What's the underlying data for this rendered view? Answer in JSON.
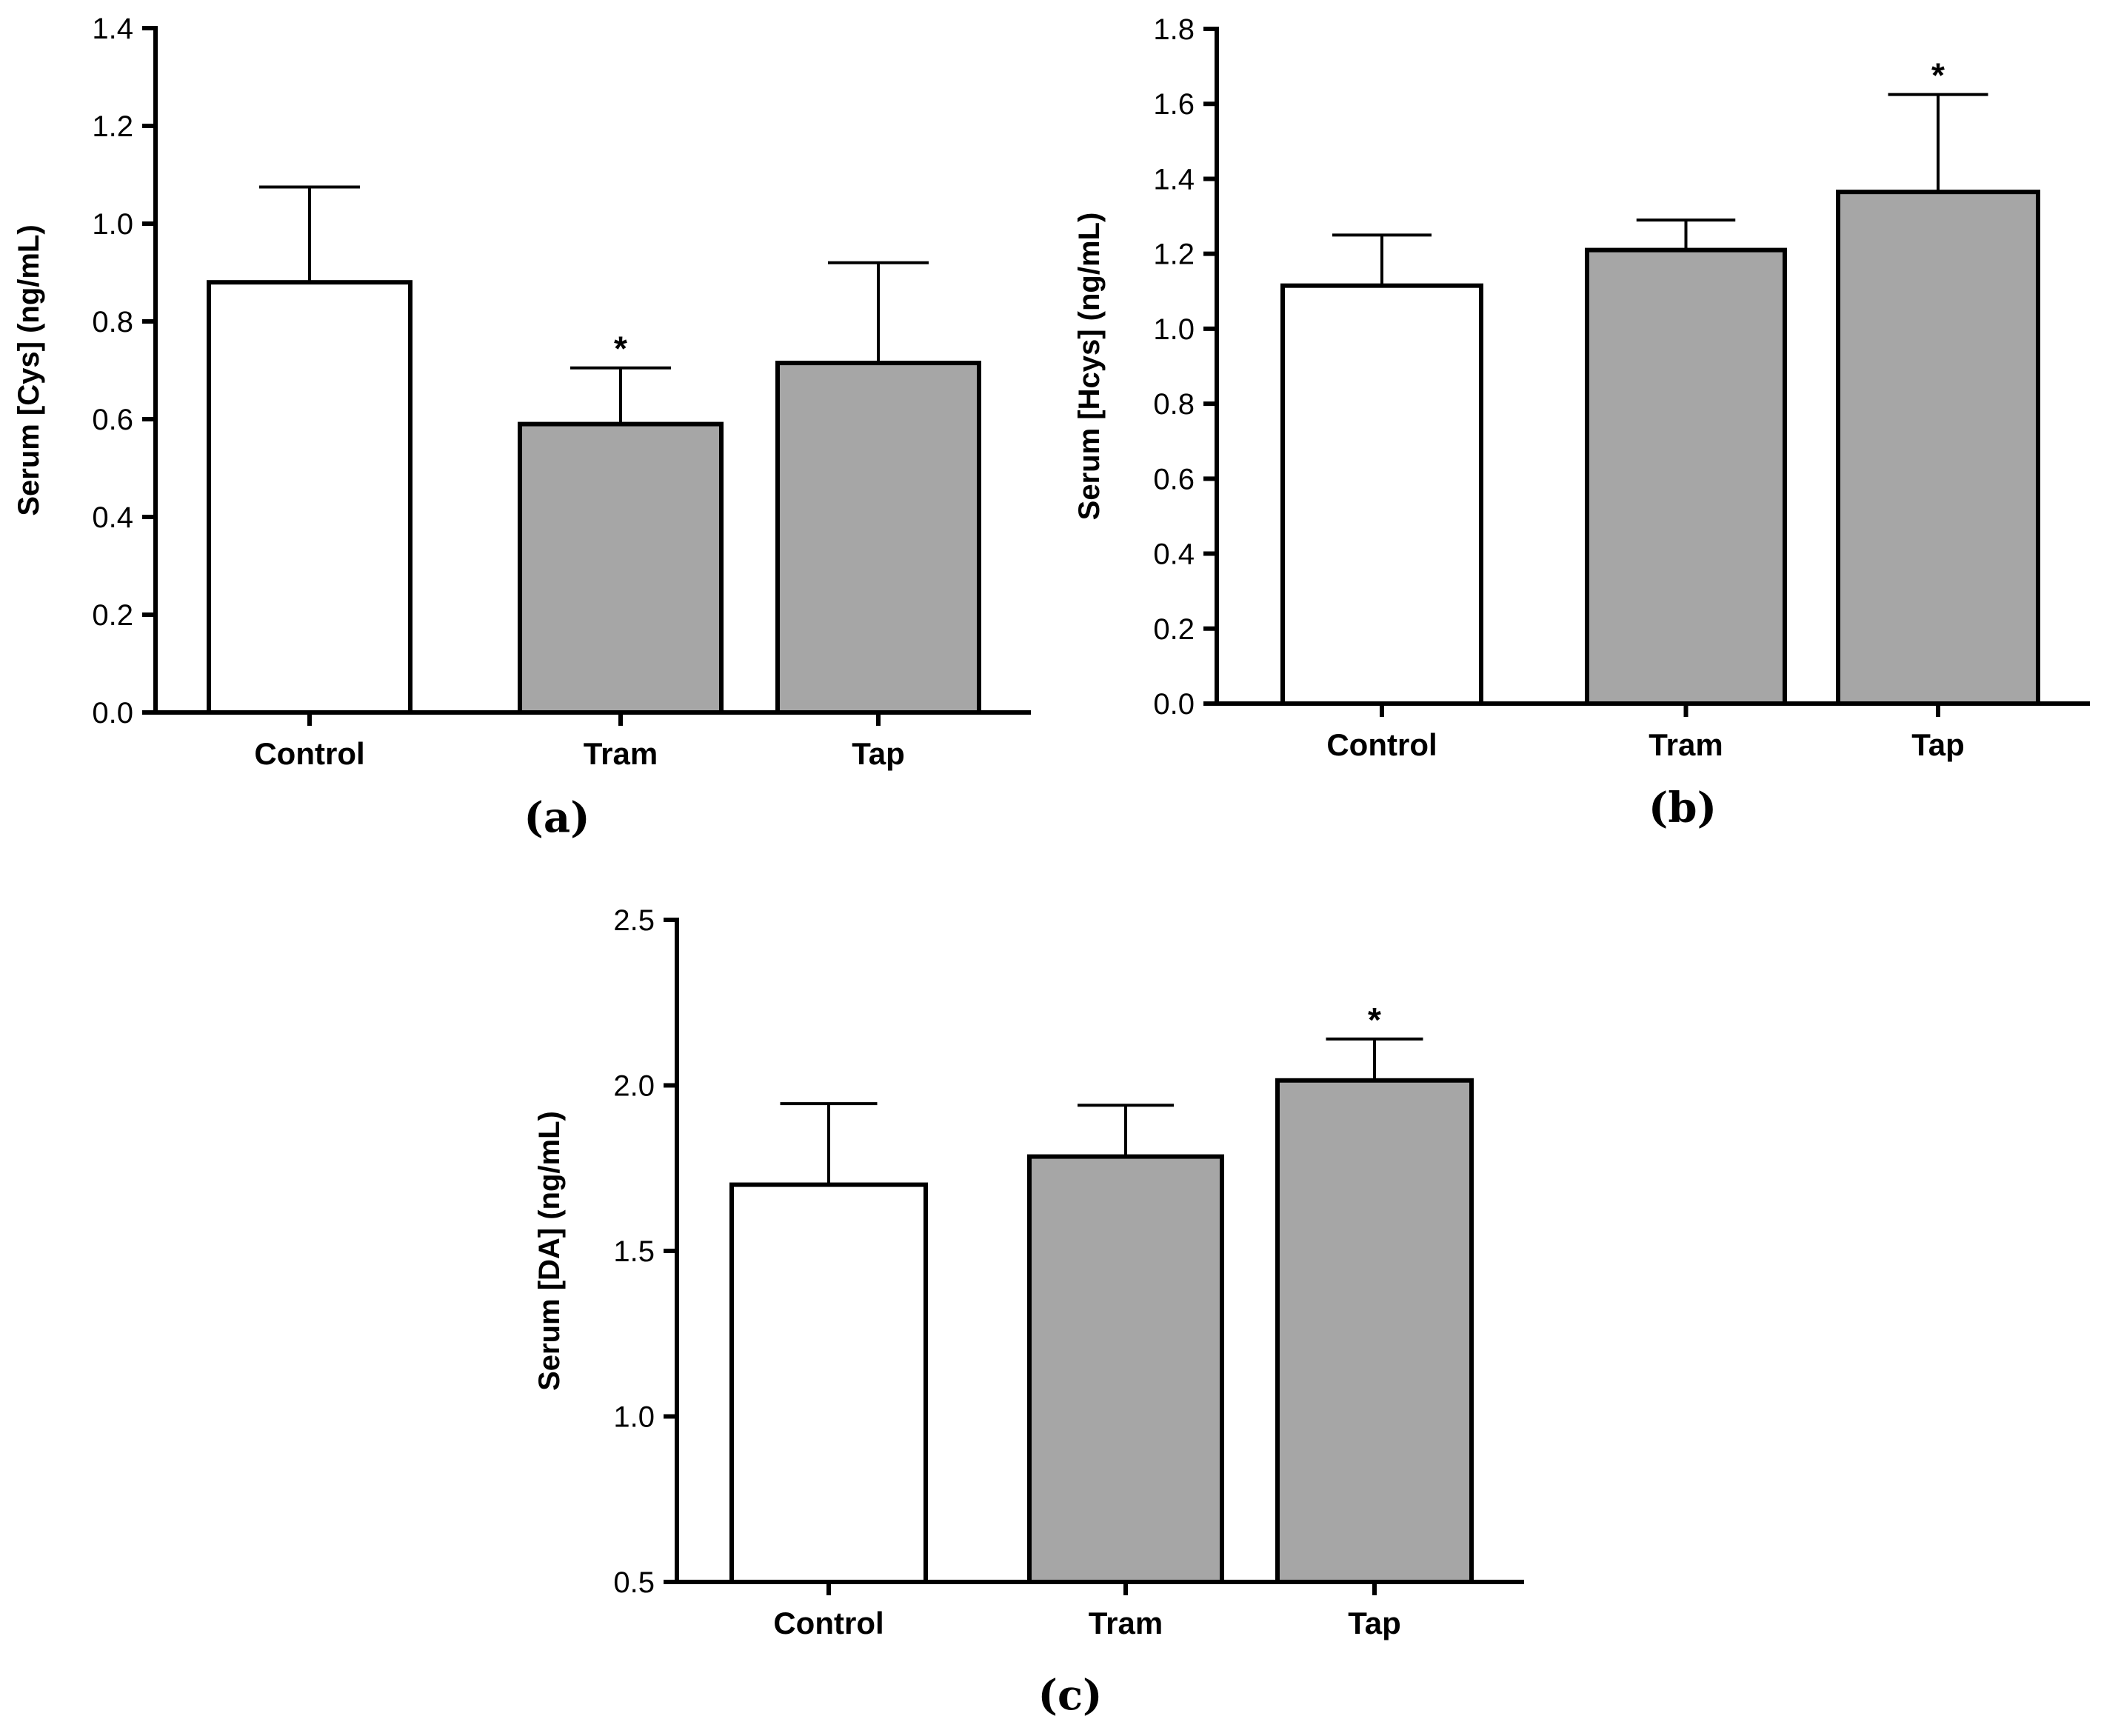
{
  "colors": {
    "control_fill": "#ffffff",
    "treatment_fill": "#a6a6a6",
    "stroke": "#000000"
  },
  "chart_data": [
    {
      "type": "bar",
      "panel": "(a)",
      "categories": [
        "Control",
        "Tram",
        "Tap"
      ],
      "values": [
        0.88,
        0.59,
        0.715
      ],
      "errors": [
        0.195,
        0.115,
        0.205
      ],
      "significance": [
        "",
        "*",
        ""
      ],
      "ylabel": "Serum [Cys] (ng/mL)",
      "xlabel": "",
      "ylim": [
        0,
        1.4
      ],
      "yticks": [
        0.0,
        0.2,
        0.4,
        0.6,
        0.8,
        1.0,
        1.2,
        1.4
      ],
      "ytick_labels": [
        "0.0",
        "0.2",
        "0.4",
        "0.6",
        "0.8",
        "1.0",
        "1.2",
        "1.4"
      ],
      "grid": false
    },
    {
      "type": "bar",
      "panel": "(b)",
      "categories": [
        "Control",
        "Tram",
        "Tap"
      ],
      "values": [
        1.115,
        1.21,
        1.365
      ],
      "errors": [
        0.135,
        0.08,
        0.26
      ],
      "significance": [
        "",
        "",
        "*"
      ],
      "ylabel": "Serum [Hcys] (ng/mL)",
      "xlabel": "",
      "ylim": [
        0,
        1.8
      ],
      "yticks": [
        0.0,
        0.2,
        0.4,
        0.6,
        0.8,
        1.0,
        1.2,
        1.4,
        1.6,
        1.8
      ],
      "ytick_labels": [
        "0.0",
        "0.2",
        "0.4",
        "0.6",
        "0.8",
        "1.0",
        "1.2",
        "1.4",
        "1.6",
        "1.8"
      ],
      "grid": false
    },
    {
      "type": "bar",
      "panel": "(c)",
      "categories": [
        "Control",
        "Tram",
        "Tap"
      ],
      "values": [
        1.7,
        1.785,
        2.015
      ],
      "errors": [
        0.245,
        0.155,
        0.125
      ],
      "significance": [
        "",
        "",
        "*"
      ],
      "ylabel": "Serum [DA] (ng/mL)",
      "xlabel": "",
      "ylim": [
        0.5,
        2.5
      ],
      "yticks": [
        0.5,
        1.0,
        1.5,
        2.0,
        2.5
      ],
      "ytick_labels": [
        "0.5",
        "1.0",
        "1.5",
        "2.0",
        "2.5"
      ],
      "grid": false
    }
  ]
}
